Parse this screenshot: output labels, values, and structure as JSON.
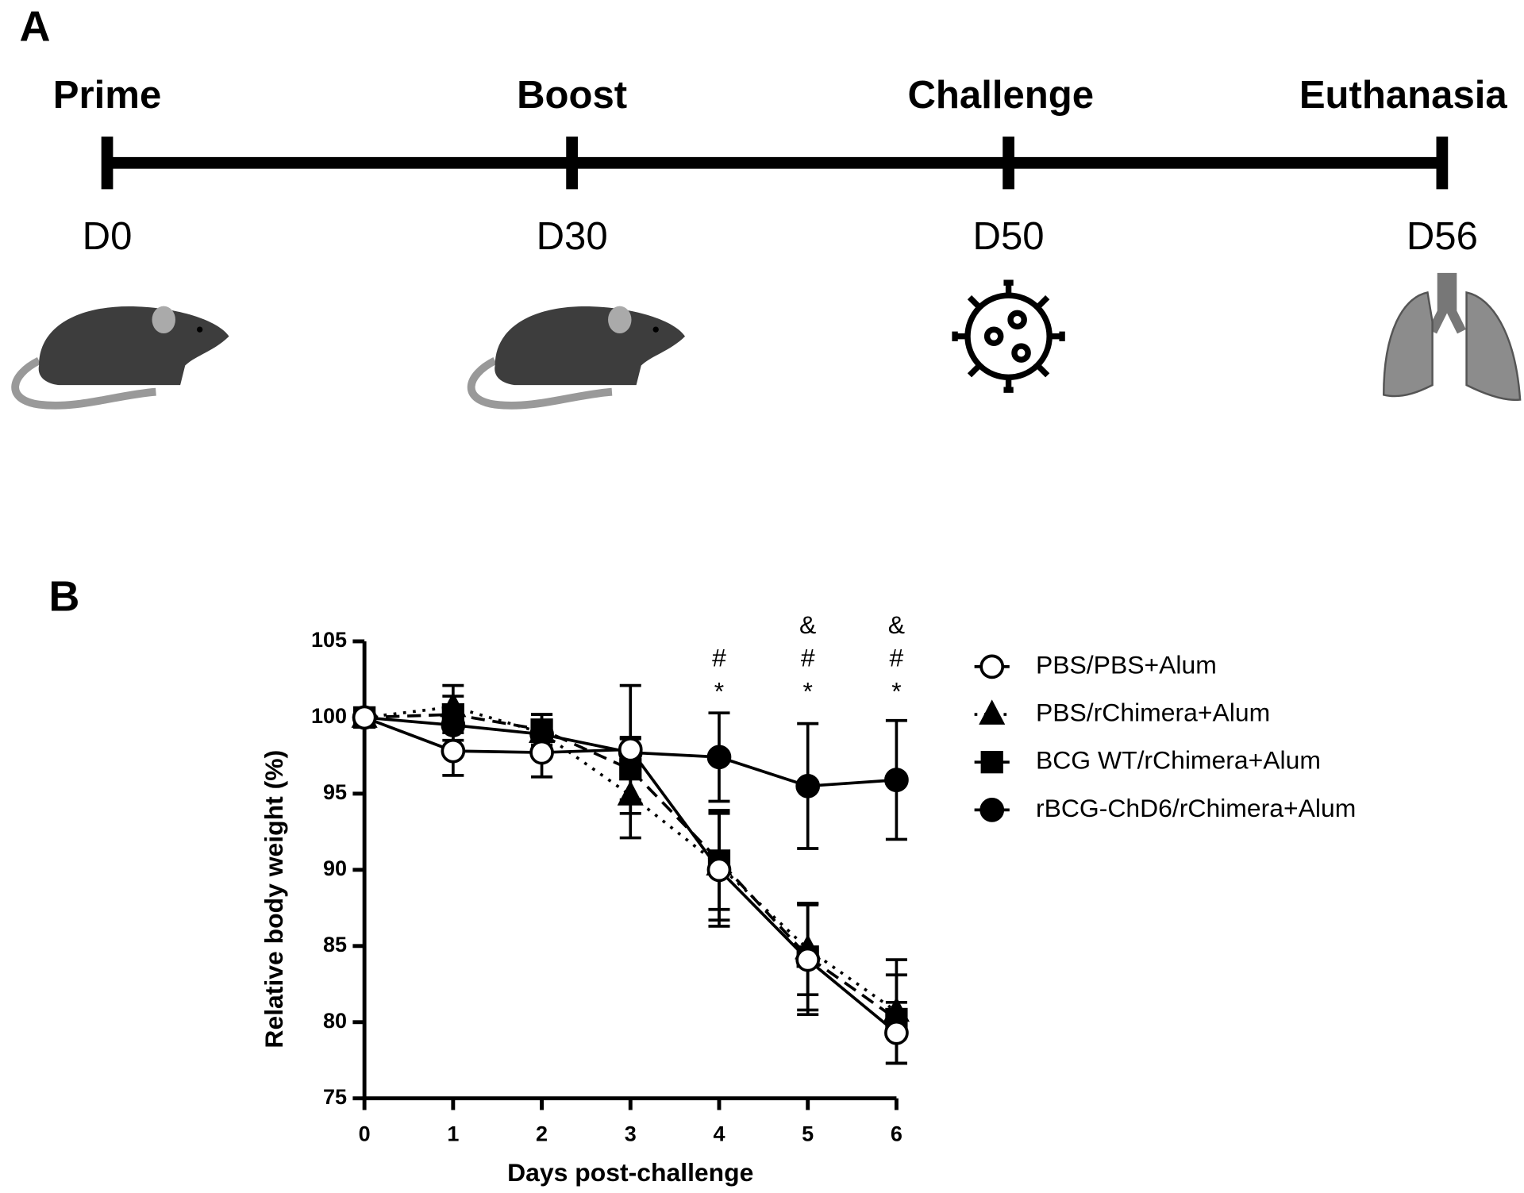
{
  "panel_a": {
    "label": "A",
    "stages": [
      {
        "name": "Prime",
        "day": "D0"
      },
      {
        "name": "Boost",
        "day": "D30"
      },
      {
        "name": "Challenge",
        "day": "D50"
      },
      {
        "name": "Euthanasia",
        "day": "D56"
      }
    ]
  },
  "chart_data": {
    "type": "line",
    "panel_label": "B",
    "x_label": "Days post-challenge",
    "y_label": "Relative body weight (%)",
    "x": [
      0,
      1,
      2,
      3,
      4,
      5,
      6
    ],
    "xlim": [
      0,
      6
    ],
    "xticks": [
      0,
      1,
      2,
      3,
      4,
      5,
      6
    ],
    "ylim": [
      75,
      105
    ],
    "yticks": [
      75,
      80,
      85,
      90,
      95,
      100,
      105
    ],
    "legend": "right",
    "series": [
      {
        "name": "PBS/PBS+Alum",
        "color": "#000000",
        "marker": "open-circle",
        "dash": "solid",
        "values": [
          100,
          97.8,
          97.7,
          97.9,
          90.0,
          84.1,
          79.3
        ],
        "errors": [
          0,
          1.6,
          1.6,
          4.2,
          3.7,
          3.6,
          2.0
        ]
      },
      {
        "name": "PBS/rChimera+Alum",
        "color": "#000000",
        "marker": "triangle",
        "dash": "dotted",
        "values": [
          100,
          100.7,
          99.0,
          94.9,
          90.3,
          84.8,
          80.7
        ],
        "errors": [
          0,
          1.4,
          1.2,
          2.8,
          3.6,
          3.0,
          3.4
        ]
      },
      {
        "name": "BCG WT/rChimera+Alum",
        "color": "#000000",
        "marker": "square",
        "dash": "dashed",
        "values": [
          100,
          100.2,
          99.2,
          96.6,
          90.6,
          84.3,
          80.2
        ],
        "errors": [
          0,
          1.2,
          1.0,
          2.0,
          3.2,
          3.5,
          2.9
        ]
      },
      {
        "name": "rBCG-ChD6/rChimera+Alum",
        "color": "#000000",
        "marker": "circle",
        "dash": "solid",
        "values": [
          100,
          99.5,
          98.9,
          97.7,
          97.4,
          95.5,
          95.9
        ],
        "errors": [
          0,
          1.0,
          0.8,
          1.0,
          2.9,
          4.1,
          3.9
        ]
      }
    ],
    "annotations": [
      {
        "x": 4,
        "text": [
          "#",
          "*"
        ]
      },
      {
        "x": 5,
        "text": [
          "&",
          "#",
          "*"
        ]
      },
      {
        "x": 6,
        "text": [
          "&",
          "#",
          "*"
        ]
      }
    ]
  }
}
